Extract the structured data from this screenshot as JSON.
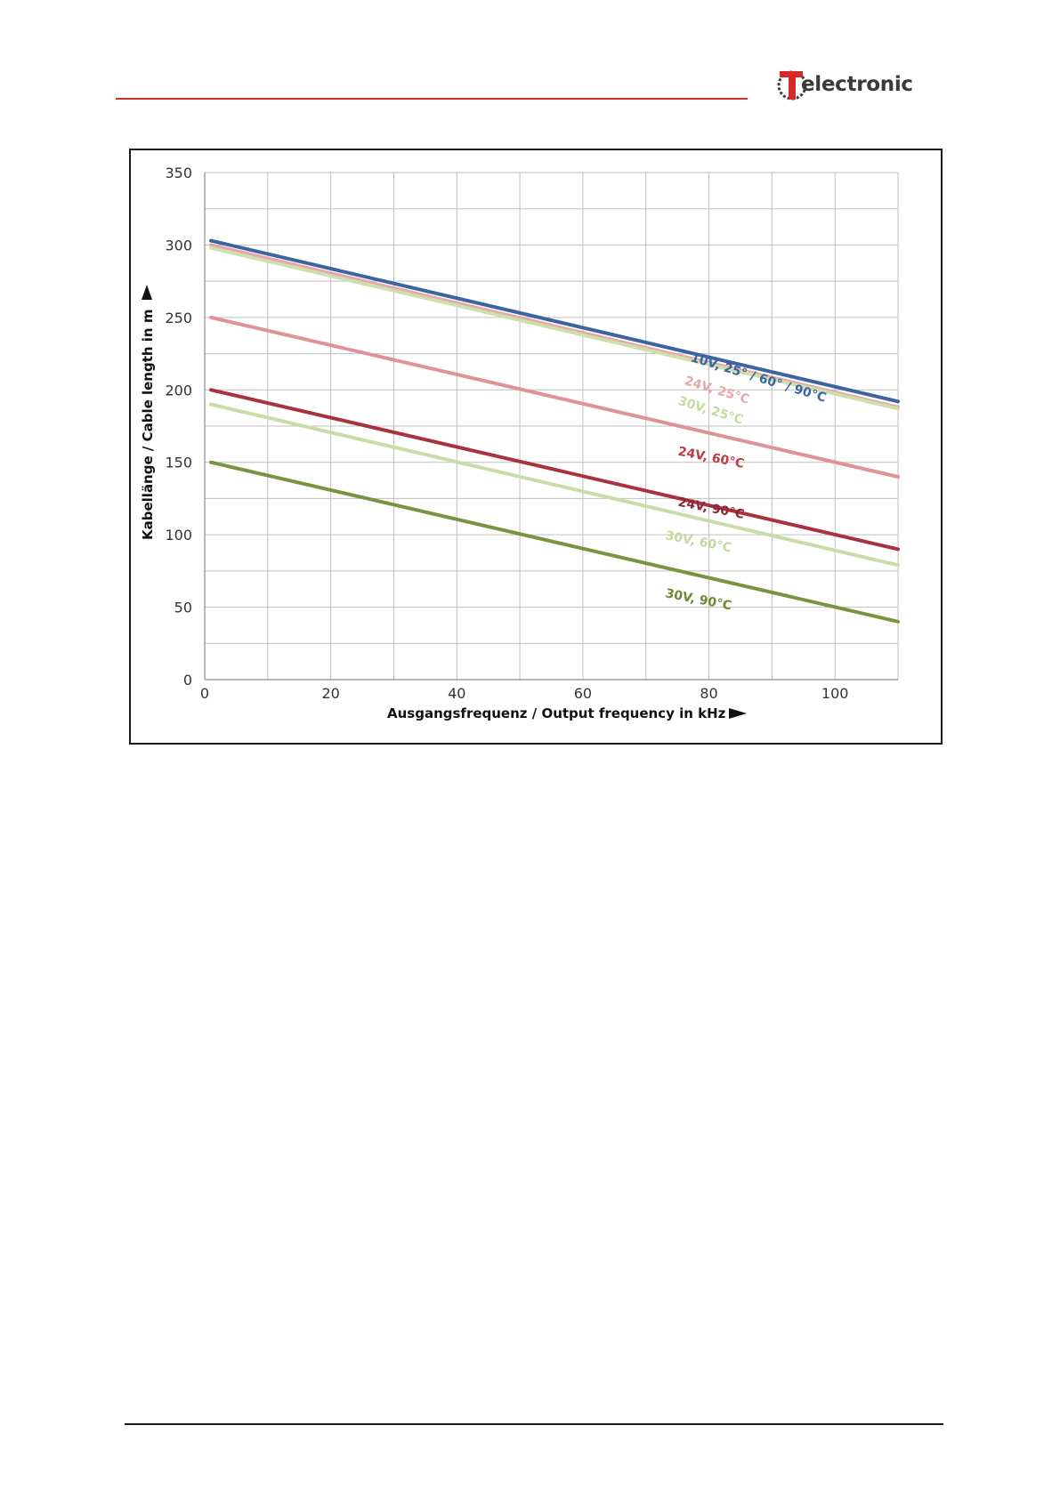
{
  "header": {
    "logo_text": "electronic",
    "logo_letter": "T",
    "brand_color": "#d42a2a"
  },
  "chart_data": {
    "type": "line",
    "xlabel": "Ausgangsfrequenz / Output frequency in kHz",
    "ylabel": "Kabellänge / Cable length in m",
    "xlim": [
      0,
      110
    ],
    "ylim": [
      0,
      350
    ],
    "x_ticks": [
      0,
      20,
      40,
      60,
      80,
      100
    ],
    "y_ticks": [
      0,
      50,
      100,
      150,
      200,
      250,
      300,
      350
    ],
    "grid": true,
    "series": [
      {
        "name": "10V, 25° / 60° / 90°C",
        "color": "#3c64a0",
        "x": [
          1,
          110
        ],
        "y": [
          303,
          192
        ],
        "label_pos": [
          77,
          220
        ],
        "label_rot": 17,
        "label_color": "#3c64a0"
      },
      {
        "name": "24V, 25°C",
        "color": "#e8a6ac",
        "x": [
          1,
          110
        ],
        "y": [
          300,
          188
        ],
        "label_pos": [
          76,
          204
        ],
        "label_rot": 17,
        "label_color": "#e8a6ac"
      },
      {
        "name": "30V, 25°C",
        "color": "#cde0ac",
        "x": [
          1,
          110
        ],
        "y": [
          298,
          187
        ],
        "label_pos": [
          75,
          190
        ],
        "label_rot": 17,
        "label_color": "#c5dba0"
      },
      {
        "name": "24V, 60°C",
        "color": "#e09296",
        "x": [
          1,
          110
        ],
        "y": [
          250,
          140
        ],
        "label_pos": [
          75,
          155
        ],
        "label_rot": 11,
        "label_color": "#c03a42"
      },
      {
        "name": "24V, 90°C",
        "color": "#a83240",
        "x": [
          1,
          110
        ],
        "y": [
          200,
          90
        ],
        "label_pos": [
          75,
          120
        ],
        "label_rot": 11,
        "label_color": "#8c2836"
      },
      {
        "name": "30V, 60°C",
        "color": "#c9dca8",
        "x": [
          1,
          110
        ],
        "y": [
          190,
          79
        ],
        "label_pos": [
          73,
          97
        ],
        "label_rot": 11,
        "label_color": "#c3d89c"
      },
      {
        "name": "30V, 90°C",
        "color": "#77953e",
        "x": [
          1,
          110
        ],
        "y": [
          150,
          40
        ],
        "label_pos": [
          73,
          57
        ],
        "label_rot": 11,
        "label_color": "#6b8a35"
      }
    ]
  }
}
